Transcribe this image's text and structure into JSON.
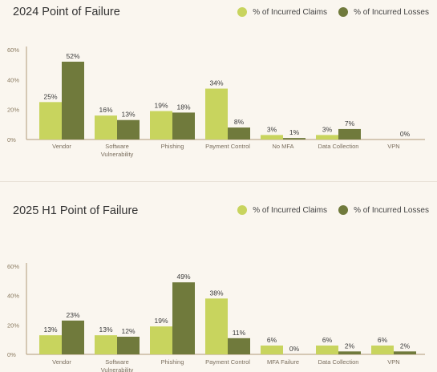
{
  "colors": {
    "claims": "#c8d45e",
    "losses": "#707a3c",
    "axis": "#b09a7a",
    "grid": "#e8dfd2",
    "tick_text": "#8a7a60",
    "cat_text": "#7a6e5e"
  },
  "legend": {
    "claims_label": "% of Incurred Claims",
    "losses_label": "% of Incurred Losses"
  },
  "chart_data": [
    {
      "type": "bar",
      "title": "2024 Point of Failure",
      "categories": [
        "Vendor",
        "Software\nVulnerability",
        "Phishing",
        "Payment Control",
        "No MFA",
        "Data Collection",
        "VPN"
      ],
      "series": [
        {
          "name": "% of Incurred Claims",
          "values": [
            25,
            16,
            19,
            34,
            3,
            3,
            null
          ]
        },
        {
          "name": "% of Incurred Losses",
          "values": [
            52,
            13,
            18,
            8,
            1,
            7,
            null
          ]
        }
      ],
      "value_labels": [
        [
          "25%",
          "52%"
        ],
        [
          "16%",
          "13%"
        ],
        [
          "19%",
          "18%"
        ],
        [
          "34%",
          "8%"
        ],
        [
          "3%",
          "1%"
        ],
        [
          "3%",
          "7%"
        ],
        [
          "",
          "0%"
        ]
      ],
      "yticks": [
        "0%",
        "20%",
        "40%",
        "60%"
      ],
      "ylim": [
        0,
        60
      ],
      "legend_position": "top-right",
      "grid": false
    },
    {
      "type": "bar",
      "title": "2025 H1 Point of Failure",
      "categories": [
        "Vendor",
        "Software\nVulnerability",
        "Phishing",
        "Payment Control",
        "MFA Failure",
        "Data Collection",
        "VPN"
      ],
      "series": [
        {
          "name": "% of Incurred Claims",
          "values": [
            13,
            13,
            19,
            38,
            6,
            6,
            6
          ]
        },
        {
          "name": "% of Incurred Losses",
          "values": [
            23,
            12,
            49,
            11,
            0,
            2,
            2
          ]
        }
      ],
      "value_labels": [
        [
          "13%",
          "23%"
        ],
        [
          "13%",
          "12%"
        ],
        [
          "19%",
          "49%"
        ],
        [
          "38%",
          "11%"
        ],
        [
          "6%",
          "0%"
        ],
        [
          "6%",
          "2%"
        ],
        [
          "6%",
          "2%"
        ]
      ],
      "yticks": [
        "0%",
        "20%",
        "40%",
        "60%"
      ],
      "ylim": [
        0,
        60
      ],
      "legend_position": "top-right",
      "grid": false
    }
  ]
}
